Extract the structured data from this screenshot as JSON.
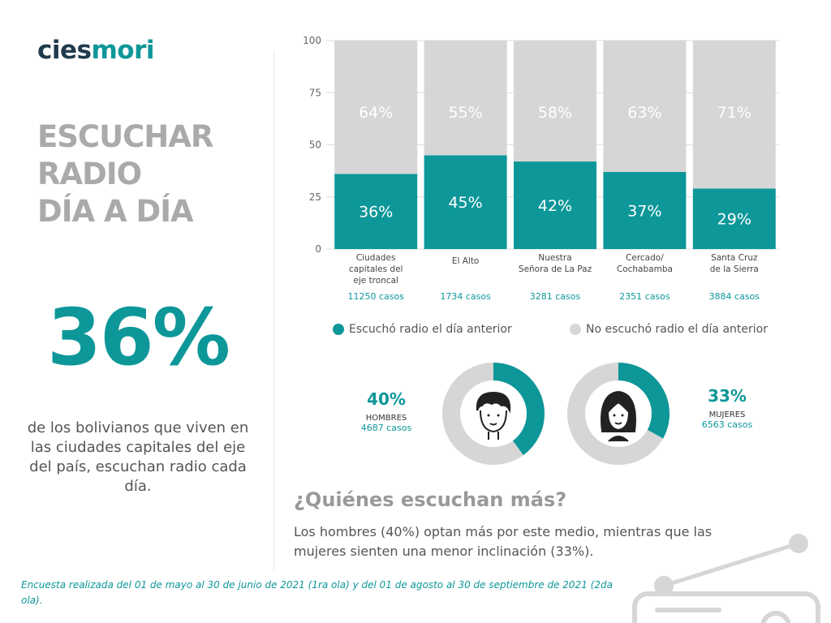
{
  "brand": {
    "part1": "cies",
    "part2": "mori"
  },
  "headline": [
    "ESCUCHAR",
    "RADIO",
    "DÍA A DÍA"
  ],
  "highlight": {
    "value": "36%",
    "description": "de los bolivianos que viven en las ciudades capitales del eje del país, escuchan radio cada día."
  },
  "chart_data": {
    "type": "bar",
    "stacked": true,
    "categories": [
      [
        "Ciudades",
        "capitales del",
        "eje troncal"
      ],
      [
        "El  Alto"
      ],
      [
        "Nuestra",
        "Señora  de La Paz"
      ],
      [
        "Cercado/",
        "Cochabamba"
      ],
      [
        "Santa Cruz",
        "de la Sierra"
      ]
    ],
    "cases": [
      "11250 casos",
      "1734 casos",
      "3281 casos",
      "2351 casos",
      "3884 casos"
    ],
    "series": [
      {
        "name": "Escuchó radio el día anterior",
        "values": [
          36,
          45,
          42,
          37,
          29
        ],
        "labels": [
          "36%",
          "45%",
          "42%",
          "37%",
          "29%"
        ],
        "color": "#0e9799"
      },
      {
        "name": "No escuchó radio el día anterior",
        "values": [
          64,
          55,
          58,
          63,
          71
        ],
        "labels": [
          "64%",
          "55%",
          "58%",
          "63%",
          "71%"
        ],
        "color": "#d6d6d6"
      }
    ],
    "ylim": [
      0,
      100
    ],
    "yticks": [
      "0",
      "25",
      "50",
      "75",
      "100"
    ],
    "grid": true
  },
  "gender": [
    {
      "percent": "40%",
      "value": 40,
      "group": "HOMBRES",
      "cases": "4687 casos",
      "icon": "man-icon"
    },
    {
      "percent": "33%",
      "value": 33,
      "group": "MUJERES",
      "cases": "6563 casos",
      "icon": "woman-icon"
    }
  ],
  "question": "¿Quiénes escuchan más?",
  "answer": "Los hombres (40%) optan más por este medio, mientras que las mujeres sienten una menor inclinación (33%).",
  "footnote": "Encuesta realizada del  01 de mayo al 30 de junio de 2021 (1ra ola) y del 01 de agosto al 30 de  septiembre de 2021 (2da ola).",
  "colors": {
    "accent": "#0e9799",
    "muted": "#d6d6d6",
    "logo_dark": "#1f3b4d",
    "headline": "#aaaaaa"
  }
}
